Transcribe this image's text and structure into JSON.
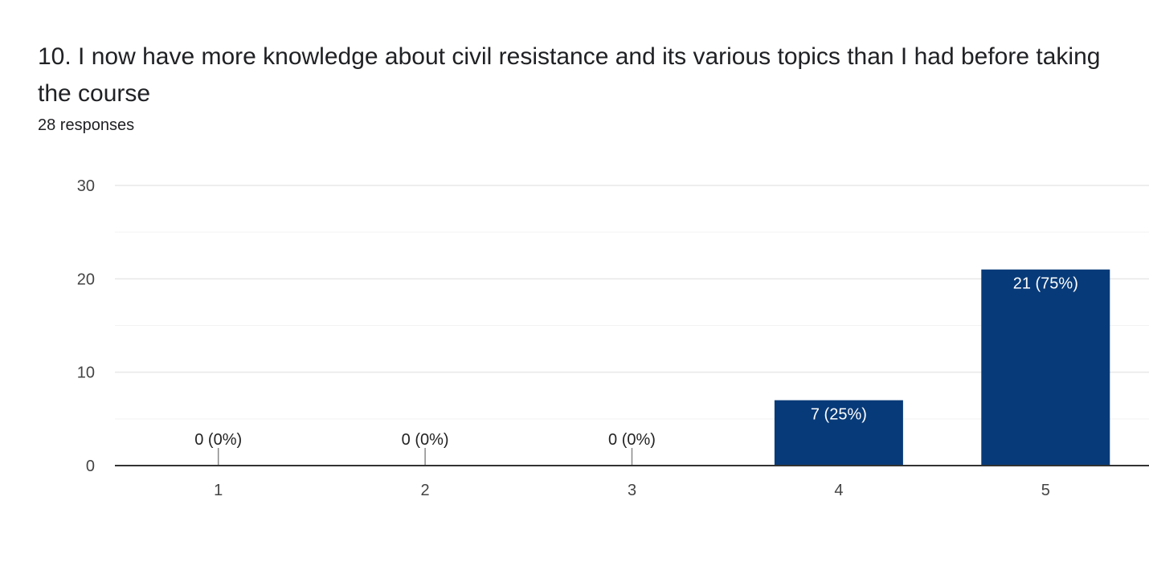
{
  "question": {
    "title": "10. I now have more knowledge about civil resistance and its various topics than I had before taking the course",
    "responses": "28 responses"
  },
  "colors": {
    "bar": "#073a78",
    "gridline": "#e8e8e8",
    "minor_gridline": "#f3f3f3",
    "axis": "#333333",
    "tick_text": "#444444",
    "label_inside": "#ffffff",
    "label_outside": "#222222"
  },
  "chart_data": {
    "type": "bar",
    "categories": [
      "1",
      "2",
      "3",
      "4",
      "5"
    ],
    "values": [
      0,
      0,
      0,
      7,
      21
    ],
    "data_labels": [
      "0 (0%)",
      "0 (0%)",
      "0 (0%)",
      "7 (25%)",
      "21 (75%)"
    ],
    "y_ticks": [
      0,
      10,
      20,
      30
    ],
    "ylim": [
      0,
      30
    ],
    "title": "",
    "xlabel": "",
    "ylabel": "",
    "grid": true,
    "legend": "none"
  }
}
